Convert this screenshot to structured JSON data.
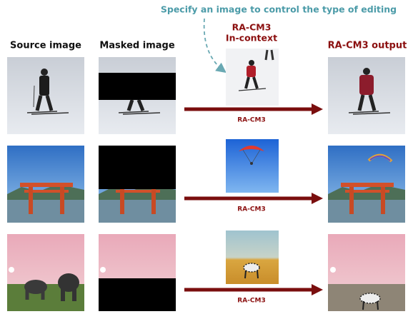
{
  "instruction": "Specify an image to control the type of editing",
  "column_headers": {
    "source": "Source image",
    "masked": "Masked image",
    "in_context": [
      "RA-CM3",
      "In-context"
    ],
    "output": "RA-CM3 output"
  },
  "rows": [
    {
      "arrow_label": "RA-CM3"
    },
    {
      "arrow_label": "RA-CM3"
    },
    {
      "arrow_label": "RA-CM3"
    }
  ]
}
